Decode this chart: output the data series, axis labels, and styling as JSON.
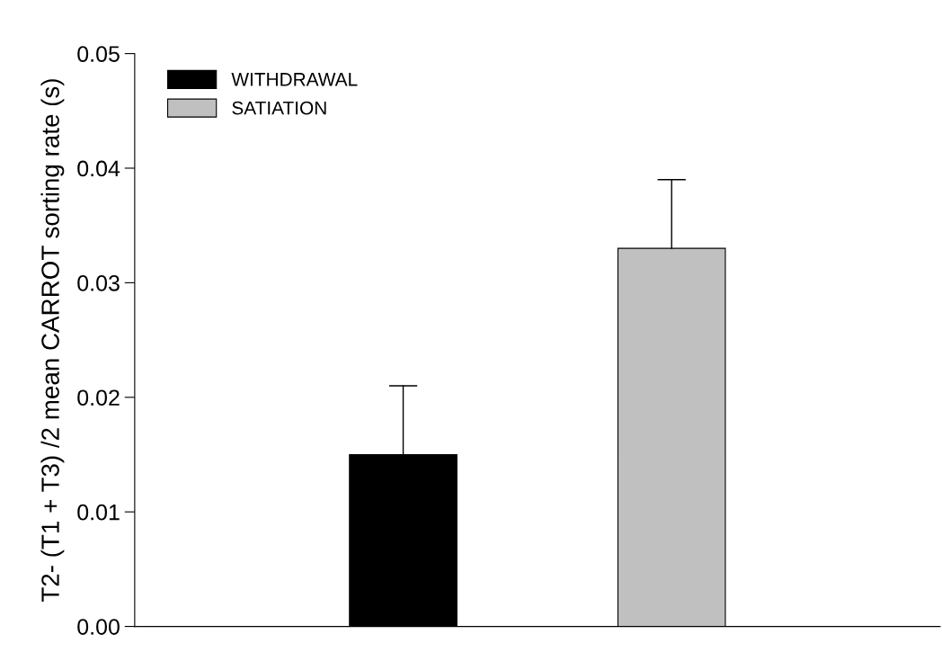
{
  "chart_data": {
    "type": "bar",
    "ylabel": "T2- (T1 + T3) /2 mean CARROT sorting rate (s)",
    "categories": [
      null,
      null
    ],
    "series": [
      {
        "name": "WITHDRAWAL",
        "color": "#000000",
        "values": [
          0.015,
          null
        ],
        "errors": [
          [
            0.015,
            0.021
          ],
          null
        ]
      },
      {
        "name": "SATIATION",
        "color": "#c0c0c0",
        "values": [
          null,
          0.033
        ],
        "errors": [
          null,
          [
            0.033,
            0.039
          ]
        ]
      }
    ],
    "stacked": true,
    "ylim": [
      0,
      0.05
    ],
    "yticks": [
      {
        "value": 0,
        "label": "0.00"
      },
      {
        "value": 0.01,
        "label": "0.01"
      },
      {
        "value": 0.02,
        "label": "0.02"
      },
      {
        "value": 0.03,
        "label": "0.03"
      },
      {
        "value": 0.04,
        "label": "0.04"
      },
      {
        "value": 0.05,
        "label": "0.05"
      }
    ],
    "grid": false,
    "legend": "top left"
  }
}
